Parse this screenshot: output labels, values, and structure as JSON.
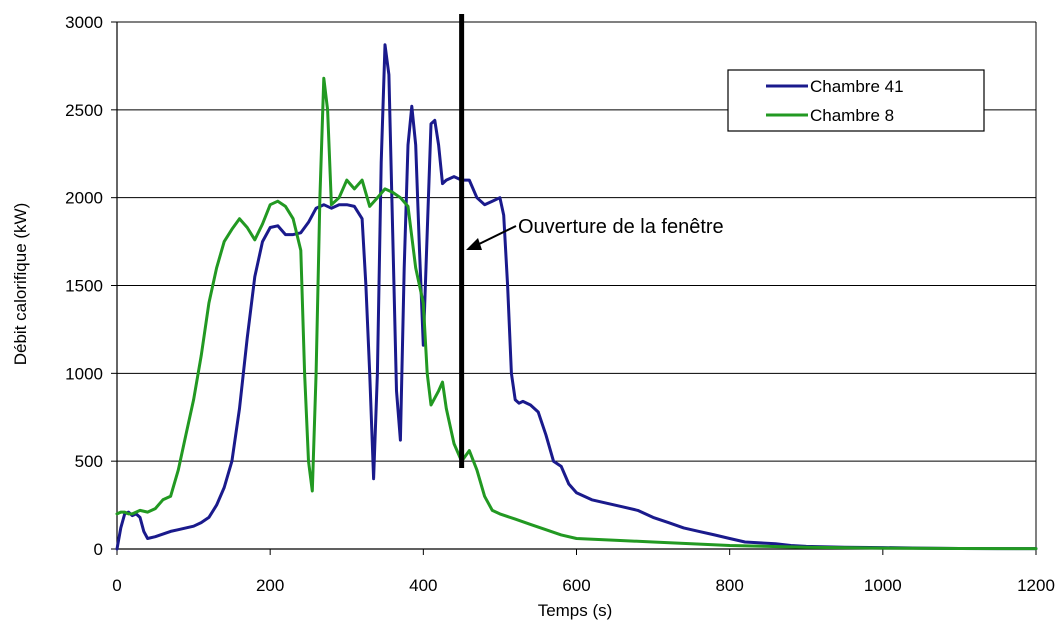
{
  "chart_data": {
    "type": "line",
    "title": "",
    "xlabel": "Temps (s)",
    "ylabel": "Débit calorifique (kW)",
    "xlim": [
      0,
      1200
    ],
    "ylim": [
      0,
      3000
    ],
    "x_ticks": [
      0,
      200,
      400,
      600,
      800,
      1000,
      1200
    ],
    "y_ticks": [
      0,
      500,
      1000,
      1500,
      2000,
      2500,
      3000
    ],
    "grid": "horizontal",
    "legend_position": "top-right",
    "series": [
      {
        "name": "Chambre 41",
        "color": "#1a1a8c",
        "x": [
          0,
          5,
          10,
          15,
          20,
          25,
          30,
          35,
          40,
          50,
          60,
          70,
          80,
          90,
          100,
          110,
          120,
          130,
          140,
          150,
          160,
          170,
          180,
          190,
          200,
          210,
          220,
          230,
          240,
          250,
          260,
          270,
          280,
          290,
          300,
          310,
          320,
          325,
          330,
          335,
          340,
          345,
          350,
          355,
          360,
          365,
          370,
          375,
          380,
          385,
          390,
          395,
          400,
          405,
          410,
          415,
          420,
          425,
          430,
          440,
          450,
          460,
          470,
          480,
          490,
          500,
          505,
          510,
          515,
          520,
          525,
          530,
          540,
          550,
          560,
          570,
          580,
          590,
          600,
          620,
          640,
          660,
          680,
          700,
          720,
          740,
          760,
          780,
          800,
          820,
          840,
          860,
          880,
          900,
          950,
          1000,
          1050,
          1100,
          1150,
          1200
        ],
        "y": [
          0,
          120,
          200,
          210,
          190,
          200,
          180,
          100,
          60,
          70,
          85,
          100,
          110,
          120,
          130,
          150,
          180,
          250,
          350,
          500,
          800,
          1200,
          1550,
          1750,
          1830,
          1840,
          1790,
          1790,
          1800,
          1860,
          1940,
          1960,
          1940,
          1960,
          1960,
          1950,
          1880,
          1500,
          1000,
          400,
          1000,
          2200,
          2870,
          2700,
          1800,
          900,
          620,
          1600,
          2300,
          2520,
          2300,
          1700,
          1160,
          1800,
          2420,
          2440,
          2300,
          2080,
          2100,
          2120,
          2100,
          2100,
          2000,
          1960,
          1980,
          2000,
          1900,
          1500,
          1000,
          850,
          830,
          840,
          820,
          780,
          650,
          500,
          470,
          370,
          320,
          280,
          260,
          240,
          220,
          180,
          150,
          120,
          100,
          80,
          60,
          40,
          35,
          30,
          20,
          15,
          10,
          8,
          5,
          3,
          2,
          2
        ]
      },
      {
        "name": "Chambre 8",
        "color": "#229922",
        "x": [
          0,
          5,
          10,
          15,
          20,
          30,
          40,
          50,
          60,
          70,
          80,
          90,
          100,
          110,
          120,
          130,
          140,
          150,
          160,
          170,
          180,
          190,
          200,
          210,
          220,
          230,
          240,
          245,
          250,
          255,
          260,
          265,
          270,
          275,
          280,
          290,
          300,
          310,
          320,
          330,
          340,
          350,
          360,
          370,
          380,
          390,
          400,
          405,
          410,
          420,
          425,
          430,
          440,
          450,
          460,
          470,
          480,
          490,
          500,
          520,
          540,
          560,
          580,
          600,
          650,
          700,
          750,
          800,
          850,
          900,
          1000,
          1100,
          1200
        ],
        "y": [
          200,
          210,
          210,
          200,
          200,
          220,
          210,
          230,
          280,
          300,
          450,
          650,
          850,
          1100,
          1400,
          1600,
          1750,
          1820,
          1880,
          1830,
          1760,
          1850,
          1960,
          1980,
          1950,
          1880,
          1700,
          1000,
          500,
          330,
          1000,
          2000,
          2680,
          2500,
          1960,
          2000,
          2100,
          2050,
          2100,
          1950,
          2000,
          2050,
          2030,
          2000,
          1950,
          1600,
          1400,
          1000,
          820,
          900,
          950,
          800,
          600,
          500,
          560,
          450,
          300,
          220,
          200,
          170,
          140,
          110,
          80,
          60,
          50,
          40,
          30,
          20,
          15,
          10,
          5,
          3,
          2
        ]
      }
    ],
    "annotation": {
      "text": "Ouverture de la fenêtre",
      "marker_x": 450
    }
  }
}
